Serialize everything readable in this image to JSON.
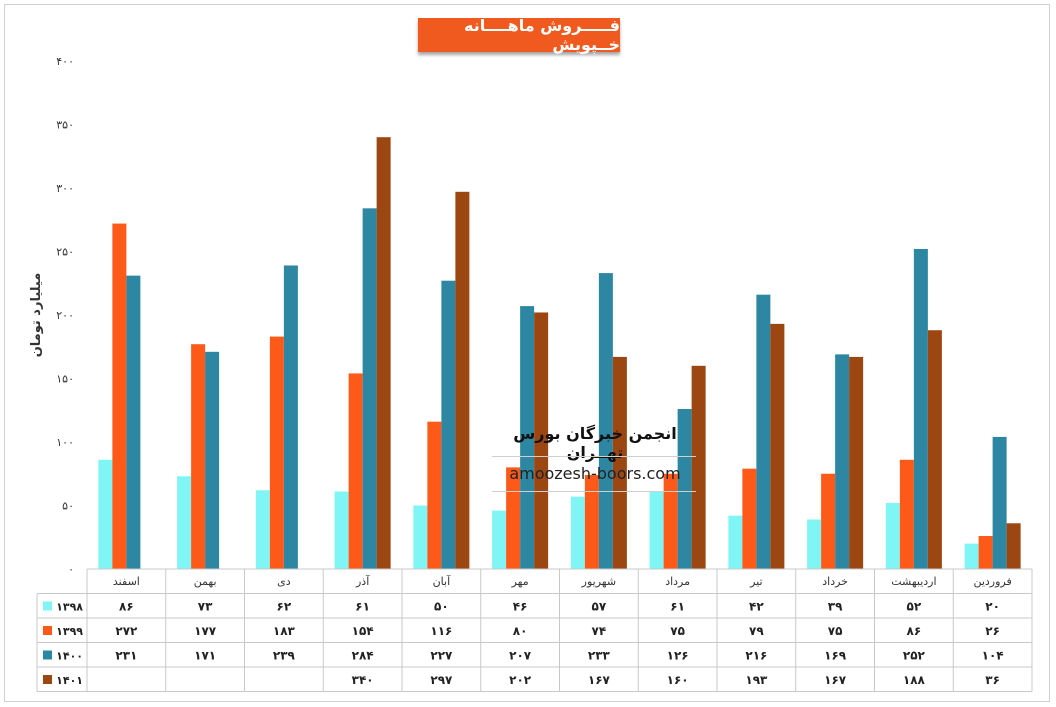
{
  "chart_data": {
    "type": "bar",
    "title": "فـــــروش ماهــــانه خــپویش",
    "ylabel": "میلیارد تومان",
    "xlabel": "",
    "ylim": [
      0,
      400
    ],
    "yticks": [
      "۰",
      "۵۰",
      "۱۰۰",
      "۱۵۰",
      "۲۰۰",
      "۲۵۰",
      "۳۰۰",
      "۳۵۰",
      "۴۰۰"
    ],
    "categories": [
      "فروردین",
      "اردیبهشت",
      "خرداد",
      "تیر",
      "مرداد",
      "شهریور",
      "مهر",
      "آبان",
      "آذر",
      "دی",
      "بهمن",
      "اسفند"
    ],
    "series": [
      {
        "name": "۱۳۹۸",
        "color": "#7ff5f5",
        "values": [
          20,
          52,
          39,
          42,
          61,
          57,
          46,
          50,
          61,
          62,
          73,
          86
        ],
        "labels": [
          "۲۰",
          "۵۲",
          "۳۹",
          "۴۲",
          "۶۱",
          "۵۷",
          "۴۶",
          "۵۰",
          "۶۱",
          "۶۲",
          "۷۳",
          "۸۶"
        ]
      },
      {
        "name": "۱۳۹۹",
        "color": "#fd5a1a",
        "values": [
          26,
          86,
          75,
          79,
          75,
          74,
          80,
          116,
          154,
          183,
          177,
          272
        ],
        "labels": [
          "۲۶",
          "۸۶",
          "۷۵",
          "۷۹",
          "۷۵",
          "۷۴",
          "۸۰",
          "۱۱۶",
          "۱۵۴",
          "۱۸۳",
          "۱۷۷",
          "۲۷۲"
        ]
      },
      {
        "name": "۱۴۰۰",
        "color": "#2d87a2",
        "values": [
          104,
          252,
          169,
          216,
          126,
          233,
          207,
          227,
          284,
          239,
          171,
          231
        ],
        "labels": [
          "۱۰۴",
          "۲۵۲",
          "۱۶۹",
          "۲۱۶",
          "۱۲۶",
          "۲۳۳",
          "۲۰۷",
          "۲۲۷",
          "۲۸۴",
          "۲۳۹",
          "۱۷۱",
          "۲۳۱"
        ]
      },
      {
        "name": "۱۴۰۱",
        "color": "#9c4612",
        "values": [
          36,
          188,
          167,
          193,
          160,
          167,
          202,
          297,
          340,
          null,
          null,
          null
        ],
        "labels": [
          "۳۶",
          "۱۸۸",
          "۱۶۷",
          "۱۹۳",
          "۱۶۰",
          "۱۶۷",
          "۲۰۲",
          "۲۹۷",
          "۳۴۰",
          "",
          "",
          ""
        ]
      }
    ],
    "legend": "bottom-table",
    "grid": false
  },
  "watermark": {
    "title": "انجمن خبرگان بورس تهــران",
    "url": "amoozesh-boors.com"
  }
}
